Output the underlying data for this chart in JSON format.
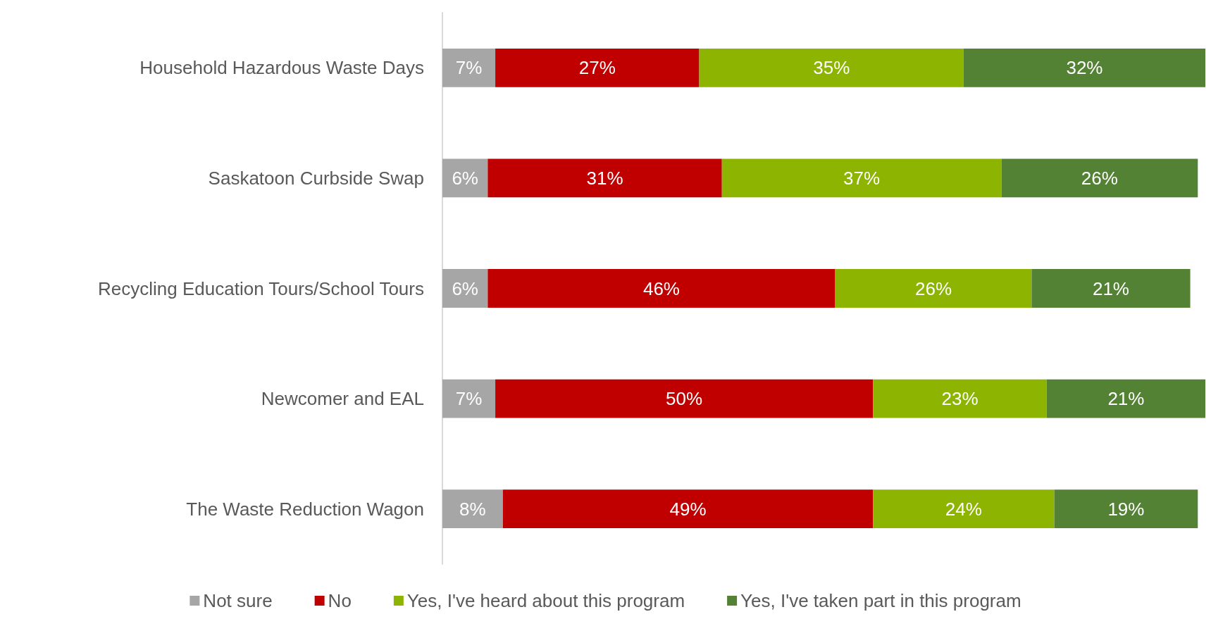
{
  "chart_data": {
    "type": "bar",
    "orientation": "horizontal",
    "stacked": true,
    "legend": "bottom",
    "categories": [
      "Household Hazardous Waste Days",
      "Saskatoon Curbside Swap",
      "Recycling Education Tours/School Tours",
      "Newcomer and EAL",
      "The Waste Reduction Wagon"
    ],
    "series": [
      {
        "name": "Not sure",
        "color": "#a6a6a6",
        "values": [
          7,
          6,
          6,
          7,
          8
        ],
        "value_labels": [
          "7%",
          "6%",
          "6%",
          "7%",
          "8%"
        ]
      },
      {
        "name": "No",
        "color": "#c00000",
        "values": [
          27,
          31,
          46,
          50,
          49
        ],
        "value_labels": [
          "27%",
          "31%",
          "46%",
          "50%",
          "49%"
        ]
      },
      {
        "name": "Yes, I've heard about this program",
        "color": "#8cb400",
        "values": [
          35,
          37,
          26,
          23,
          24
        ],
        "value_labels": [
          "35%",
          "37%",
          "26%",
          "23%",
          "24%"
        ]
      },
      {
        "name": "Yes, I've taken part in this program",
        "color": "#548235",
        "values": [
          32,
          26,
          21,
          21,
          19
        ],
        "value_labels": [
          "32%",
          "26%",
          "21%",
          "21%",
          "19%"
        ]
      }
    ]
  }
}
